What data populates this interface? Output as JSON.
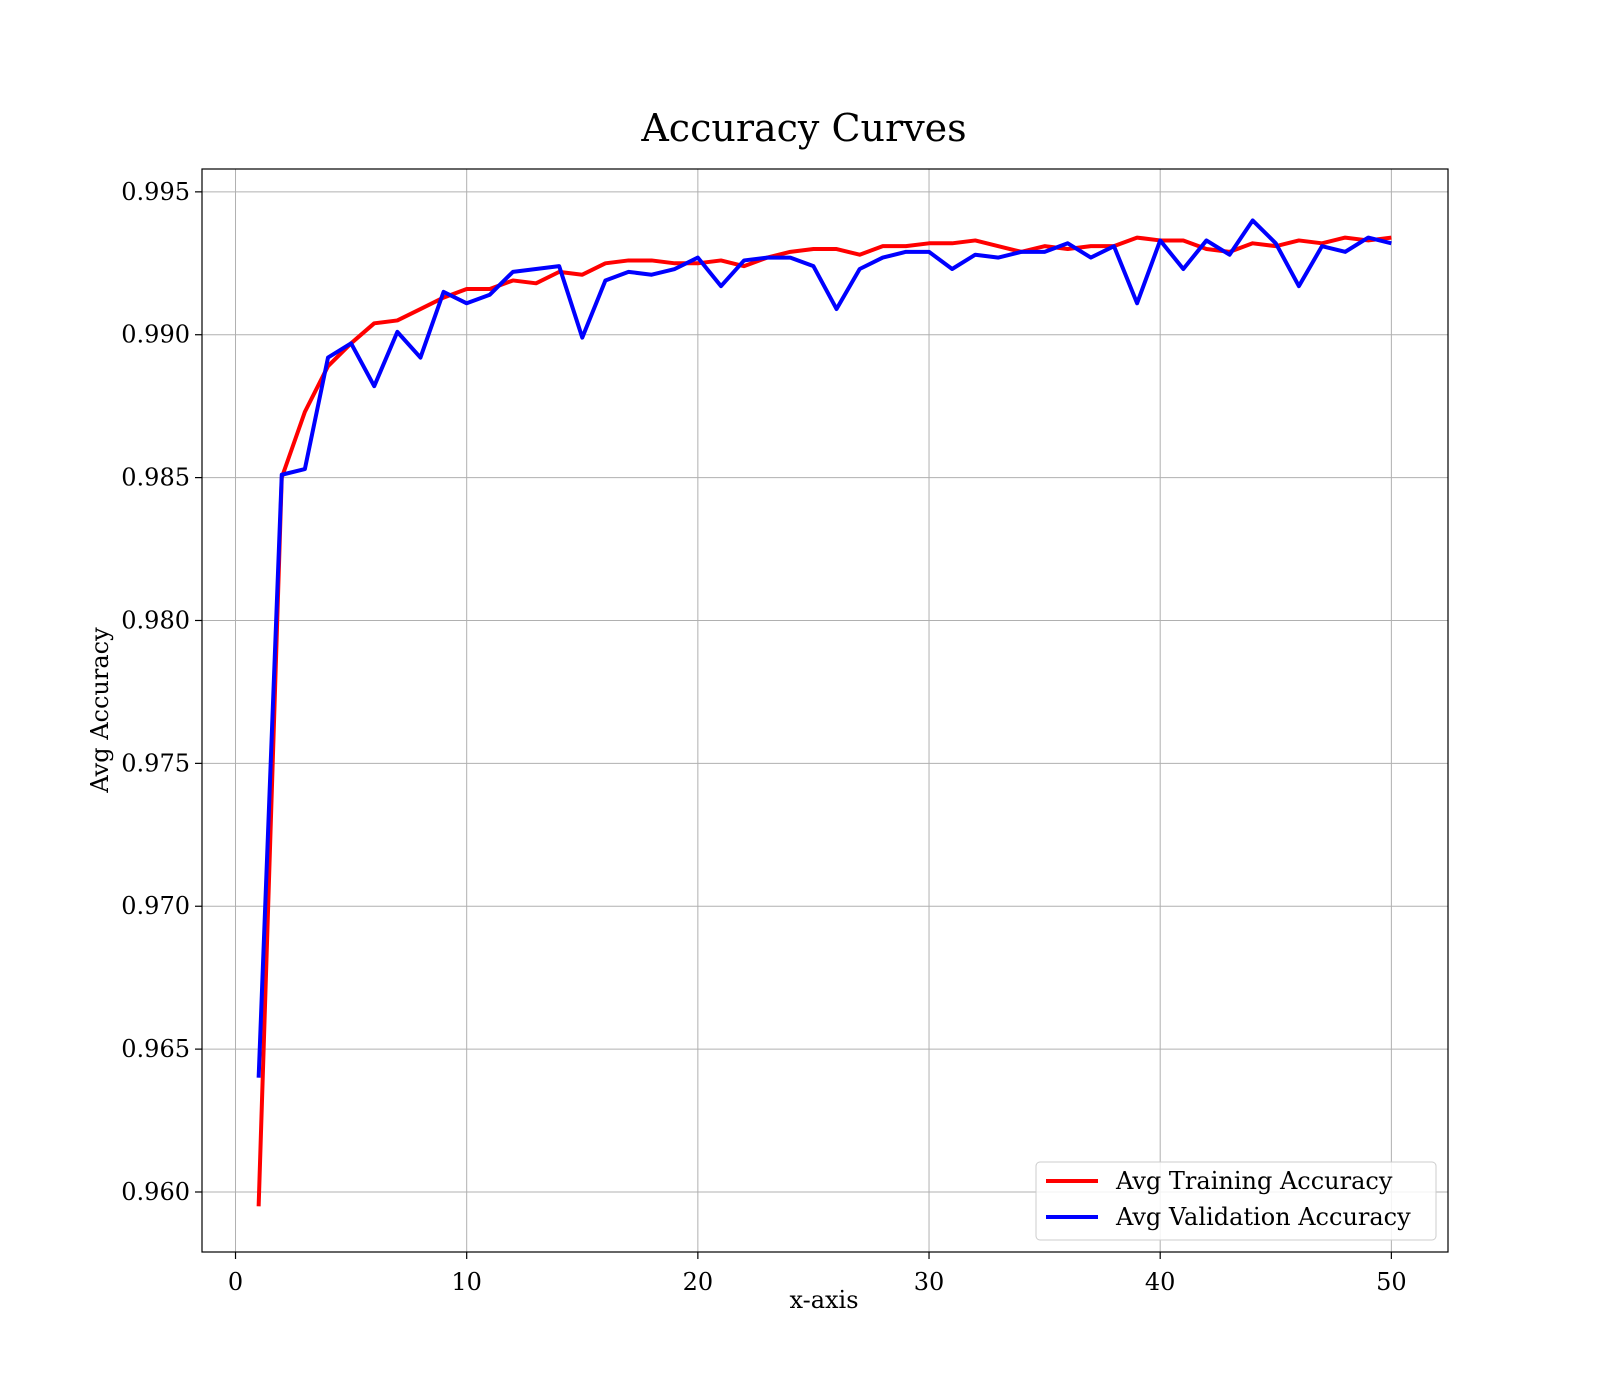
{
  "chart_data": {
    "type": "line",
    "title": "Accuracy Curves",
    "xlabel": "x-axis",
    "ylabel": "Avg Accuracy",
    "xlim": [
      -1.45,
      52.45
    ],
    "ylim": [
      0.9579,
      0.9958
    ],
    "xticks": [
      {
        "value": 0,
        "label": "0"
      },
      {
        "value": 10,
        "label": "10"
      },
      {
        "value": 20,
        "label": "20"
      },
      {
        "value": 30,
        "label": "30"
      },
      {
        "value": 40,
        "label": "40"
      },
      {
        "value": 50,
        "label": "50"
      }
    ],
    "yticks": [
      {
        "value": 0.96,
        "label": "0.960"
      },
      {
        "value": 0.965,
        "label": "0.965"
      },
      {
        "value": 0.97,
        "label": "0.970"
      },
      {
        "value": 0.975,
        "label": "0.975"
      },
      {
        "value": 0.98,
        "label": "0.980"
      },
      {
        "value": 0.985,
        "label": "0.985"
      },
      {
        "value": 0.99,
        "label": "0.990"
      },
      {
        "value": 0.995,
        "label": "0.995"
      }
    ],
    "grid": true,
    "legend_position": "lower-right",
    "x": [
      1,
      2,
      3,
      4,
      5,
      6,
      7,
      8,
      9,
      10,
      11,
      12,
      13,
      14,
      15,
      16,
      17,
      18,
      19,
      20,
      21,
      22,
      23,
      24,
      25,
      26,
      27,
      28,
      29,
      30,
      31,
      32,
      33,
      34,
      35,
      36,
      37,
      38,
      39,
      40,
      41,
      42,
      43,
      44,
      45,
      46,
      47,
      48,
      49,
      50
    ],
    "series": [
      {
        "name": "Avg Training Accuracy",
        "color": "#ff0000",
        "values": [
          0.9595,
          0.985,
          0.9873,
          0.9889,
          0.9897,
          0.9904,
          0.9905,
          0.9909,
          0.9913,
          0.9916,
          0.9916,
          0.9919,
          0.9918,
          0.9922,
          0.9921,
          0.9925,
          0.9926,
          0.9926,
          0.9925,
          0.9925,
          0.9926,
          0.9924,
          0.9927,
          0.9929,
          0.993,
          0.993,
          0.9928,
          0.9931,
          0.9931,
          0.9932,
          0.9932,
          0.9933,
          0.9931,
          0.9929,
          0.9931,
          0.993,
          0.9931,
          0.9931,
          0.9934,
          0.9933,
          0.9933,
          0.993,
          0.9929,
          0.9932,
          0.9931,
          0.9933,
          0.9932,
          0.9934,
          0.9933,
          0.9934
        ]
      },
      {
        "name": "Avg Validation Accuracy",
        "color": "#0000ff",
        "values": [
          0.964,
          0.9851,
          0.9853,
          0.9892,
          0.9897,
          0.9882,
          0.9901,
          0.9892,
          0.9915,
          0.9911,
          0.9914,
          0.9922,
          0.9923,
          0.9924,
          0.9899,
          0.9919,
          0.9922,
          0.9921,
          0.9923,
          0.9927,
          0.9917,
          0.9926,
          0.9927,
          0.9927,
          0.9924,
          0.9909,
          0.9923,
          0.9927,
          0.9929,
          0.9929,
          0.9923,
          0.9928,
          0.9927,
          0.9929,
          0.9929,
          0.9932,
          0.9927,
          0.9931,
          0.9911,
          0.9933,
          0.9923,
          0.9933,
          0.9928,
          0.994,
          0.9932,
          0.9917,
          0.9931,
          0.9929,
          0.9934,
          0.9932
        ]
      }
    ]
  }
}
